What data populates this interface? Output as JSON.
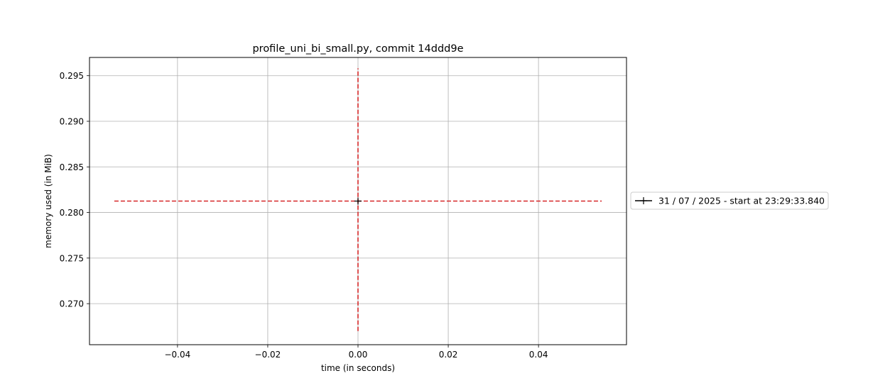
{
  "chart_data": {
    "type": "line",
    "title": "profile_uni_bi_small.py, commit 14ddd9e",
    "xlabel": "time (in seconds)",
    "ylabel": "memory used (in MiB)",
    "xlim": [
      -0.0595,
      0.0595
    ],
    "ylim": [
      0.2655,
      0.297
    ],
    "xticks": [
      -0.04,
      -0.02,
      0.0,
      0.02,
      0.04
    ],
    "xtick_labels": [
      "−0.04",
      "−0.02",
      "0.00",
      "0.02",
      "0.04"
    ],
    "yticks": [
      0.27,
      0.275,
      0.28,
      0.285,
      0.29,
      0.295
    ],
    "ytick_labels": [
      "0.270",
      "0.275",
      "0.280",
      "0.285",
      "0.290",
      "0.295"
    ],
    "grid": true,
    "legend_position": "outside-right",
    "series": [
      {
        "name": "31 / 07 / 2025 - start at 23:29:33.840",
        "color": "#000000",
        "marker": "+",
        "x": [
          0.0
        ],
        "y": [
          0.28125
        ]
      }
    ],
    "reference_lines": [
      {
        "orientation": "horizontal",
        "y": 0.28125,
        "x_range": [
          -0.054,
          0.054
        ],
        "color": "#d62728",
        "style": "dashed"
      },
      {
        "orientation": "vertical",
        "x": 0.0,
        "y_range": [
          0.267,
          0.2958
        ],
        "color": "#d62728",
        "style": "dashed"
      }
    ]
  }
}
